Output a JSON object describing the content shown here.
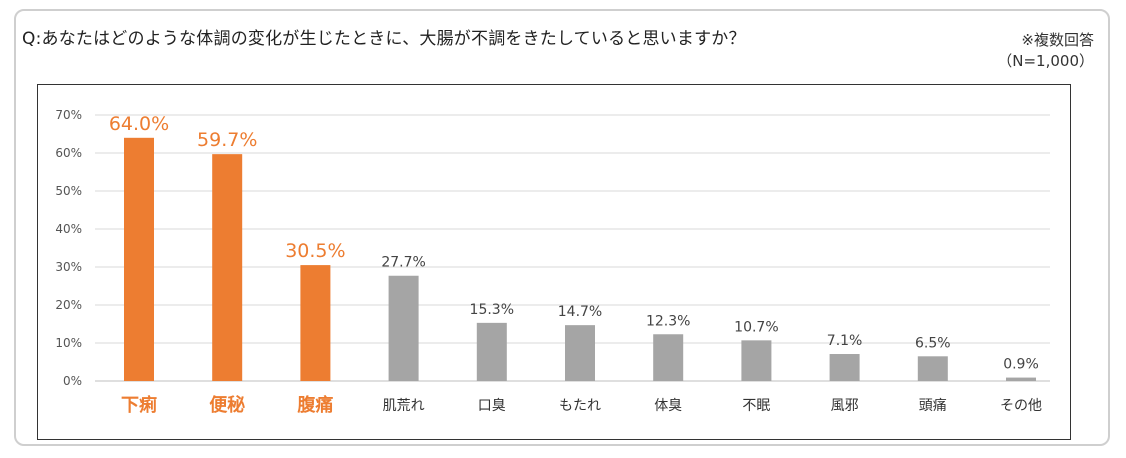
{
  "question": "Q:あなたはどのような体調の変化が生じたときに、大腸が不調をきたしていると思いますか？",
  "note_line1": "※複数回答",
  "note_line2": "（N=1,000）",
  "colors": {
    "highlight": "#ED7D31",
    "normal": "#A5A5A5",
    "grid": "#D9D9D9"
  },
  "chart_data": {
    "type": "bar",
    "categories": [
      "下痢",
      "便秘",
      "腹痛",
      "肌荒れ",
      "口臭",
      "もたれ",
      "体臭",
      "不眠",
      "風邪",
      "頭痛",
      "その他"
    ],
    "values": [
      64.0,
      59.7,
      30.5,
      27.7,
      15.3,
      14.7,
      12.3,
      10.7,
      7.1,
      6.5,
      0.9
    ],
    "value_labels": [
      "64.0%",
      "59.7%",
      "30.5%",
      "27.7%",
      "15.3%",
      "14.7%",
      "12.3%",
      "10.7%",
      "7.1%",
      "6.5%",
      "0.9%"
    ],
    "highlighted": [
      true,
      true,
      true,
      false,
      false,
      false,
      false,
      false,
      false,
      false,
      false
    ],
    "y_ticks": [
      "0%",
      "10%",
      "20%",
      "30%",
      "40%",
      "50%",
      "60%",
      "70%"
    ],
    "ylim": [
      0,
      70
    ],
    "grid": true
  }
}
